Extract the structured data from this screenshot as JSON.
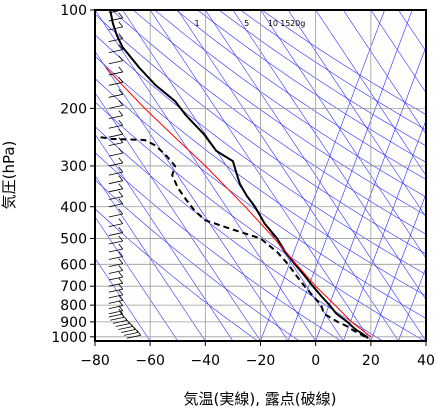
{
  "chart_data": {
    "type": "line",
    "xlabel": "気温(実線), 露点(破線)",
    "ylabel": "気圧(hPa)",
    "xlim": [
      -80,
      40
    ],
    "ylim": [
      1030,
      100
    ],
    "y_scale": "log",
    "x_ticks": [
      "−80",
      "−60",
      "−40",
      "−20",
      "0",
      "20",
      "40"
    ],
    "x_tick_values": [
      -80,
      -60,
      -40,
      -20,
      0,
      20,
      40
    ],
    "y_ticks": [
      "100",
      "200",
      "300",
      "400",
      "500",
      "600",
      "700",
      "800",
      "900",
      "1000"
    ],
    "y_tick_values": [
      100,
      200,
      300,
      400,
      500,
      600,
      700,
      800,
      900,
      1000
    ],
    "mixing_ratio_labels": [
      {
        "text": "1",
        "t": -43
      },
      {
        "text": "5",
        "t": -25
      },
      {
        "text": "10",
        "t": -15.5
      },
      {
        "text": "15",
        "t": -11
      },
      {
        "text": "20g",
        "t": -6.5
      }
    ],
    "grid": true,
    "series": [
      {
        "role": "temperature",
        "style": "solid",
        "color": "#000000",
        "points": [
          [
            1010,
            19
          ],
          [
            980,
            17
          ],
          [
            950,
            14.5
          ],
          [
            925,
            13
          ],
          [
            900,
            11.5
          ],
          [
            850,
            7.5
          ],
          [
            800,
            5
          ],
          [
            750,
            2
          ],
          [
            700,
            -1
          ],
          [
            650,
            -4
          ],
          [
            600,
            -7.5
          ],
          [
            550,
            -11
          ],
          [
            500,
            -14
          ],
          [
            450,
            -18.5
          ],
          [
            400,
            -22
          ],
          [
            370,
            -25
          ],
          [
            340,
            -27.5
          ],
          [
            310,
            -29
          ],
          [
            290,
            -30
          ],
          [
            270,
            -36
          ],
          [
            240,
            -40.5
          ],
          [
            210,
            -47
          ],
          [
            190,
            -51
          ],
          [
            170,
            -58
          ],
          [
            150,
            -64
          ],
          [
            130,
            -70
          ],
          [
            120,
            -72
          ],
          [
            110,
            -73.5
          ],
          [
            100,
            -74.5
          ]
        ]
      },
      {
        "role": "dewpoint",
        "style": "dashed",
        "color": "#000000",
        "points": [
          [
            1000,
            18
          ],
          [
            960,
            14
          ],
          [
            925,
            11
          ],
          [
            900,
            8
          ],
          [
            870,
            5
          ],
          [
            850,
            3
          ],
          [
            800,
            2
          ],
          [
            750,
            -1
          ],
          [
            700,
            -4
          ],
          [
            650,
            -7
          ],
          [
            600,
            -10
          ],
          [
            550,
            -14
          ],
          [
            500,
            -20
          ],
          [
            470,
            -30
          ],
          [
            440,
            -40
          ],
          [
            410,
            -44
          ],
          [
            380,
            -47
          ],
          [
            350,
            -50
          ],
          [
            320,
            -52
          ],
          [
            300,
            -51
          ],
          [
            280,
            -54
          ],
          [
            260,
            -58
          ],
          [
            250,
            -62
          ],
          [
            248,
            -74
          ],
          [
            245,
            -78
          ]
        ]
      },
      {
        "role": "parcel",
        "style": "solid",
        "color": "#ff0000",
        "points": [
          [
            1000,
            20
          ],
          [
            900,
            13
          ],
          [
            800,
            7
          ],
          [
            700,
            0
          ],
          [
            600,
            -7
          ],
          [
            500,
            -15
          ],
          [
            400,
            -25.5
          ],
          [
            300,
            -40
          ],
          [
            250,
            -50
          ],
          [
            200,
            -62
          ],
          [
            170,
            -70
          ],
          [
            150,
            -76
          ]
        ]
      }
    ],
    "wind_barbs": {
      "color": "#000000",
      "pressures": [
        1010,
        990,
        970,
        950,
        930,
        910,
        890,
        870,
        850,
        820,
        790,
        760,
        730,
        700,
        670,
        640,
        610,
        580,
        550,
        520,
        490,
        460,
        430,
        400,
        380,
        360,
        340,
        320,
        300,
        280,
        260,
        245,
        230,
        215,
        200,
        185,
        170,
        158,
        146,
        135,
        125,
        115,
        108,
        102
      ]
    }
  }
}
